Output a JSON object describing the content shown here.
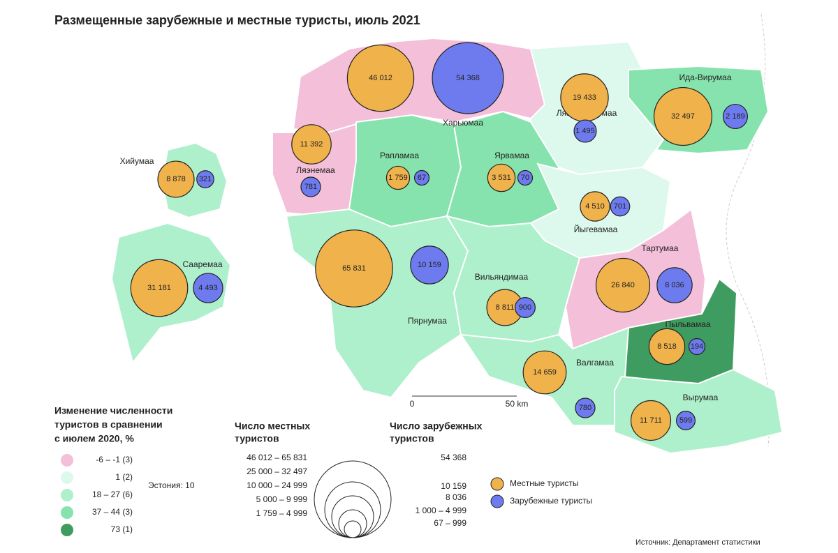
{
  "title": "Размещенные зарубежные и местные туристы, июль 2021",
  "regions": [
    {
      "name": "Харьюмаа",
      "class": 0,
      "local": {
        "value": 46012,
        "label": "46 012"
      },
      "foreign": {
        "value": 54368,
        "label": "54 368"
      }
    },
    {
      "name": "Ляэне-Вирумаа",
      "class": 1,
      "local": {
        "value": 19433,
        "label": "19 433"
      },
      "foreign": {
        "value": 1495,
        "label": "1 495"
      }
    },
    {
      "name": "Ида-Вирумаа",
      "class": 3,
      "local": {
        "value": 32497,
        "label": "32 497"
      },
      "foreign": {
        "value": 2189,
        "label": "2 189"
      }
    },
    {
      "name": "Ляэнемаа",
      "class": 0,
      "local": {
        "value": 11392,
        "label": "11 392"
      },
      "foreign": {
        "value": 781,
        "label": "781"
      }
    },
    {
      "name": "Хийумаа",
      "class": 2,
      "local": {
        "value": 8878,
        "label": "8 878"
      },
      "foreign": {
        "value": 321,
        "label": "321"
      }
    },
    {
      "name": "Рапламаа",
      "class": 3,
      "local": {
        "value": 1759,
        "label": "1 759"
      },
      "foreign": {
        "value": 67,
        "label": "67"
      }
    },
    {
      "name": "Ярвамаа",
      "class": 3,
      "local": {
        "value": 3531,
        "label": "3 531"
      },
      "foreign": {
        "value": 70,
        "label": "70"
      }
    },
    {
      "name": "Йыгевамаа",
      "class": 1,
      "local": {
        "value": 4510,
        "label": "4 510"
      },
      "foreign": {
        "value": 701,
        "label": "701"
      }
    },
    {
      "name": "Сааремаа",
      "class": 2,
      "local": {
        "value": 31181,
        "label": "31 181"
      },
      "foreign": {
        "value": 4493,
        "label": "4 493"
      }
    },
    {
      "name": "Пярнумаа",
      "class": 2,
      "local": {
        "value": 65831,
        "label": "65 831"
      },
      "foreign": {
        "value": 10159,
        "label": "10 159"
      }
    },
    {
      "name": "Вильяндимаа",
      "class": 2,
      "local": {
        "value": 8811,
        "label": "8 811"
      },
      "foreign": {
        "value": 900,
        "label": "900"
      }
    },
    {
      "name": "Тартумаа",
      "class": 0,
      "local": {
        "value": 26840,
        "label": "26 840"
      },
      "foreign": {
        "value": 8036,
        "label": "8 036"
      }
    },
    {
      "name": "Пыльвамаа",
      "class": 4,
      "local": {
        "value": 8518,
        "label": "8 518"
      },
      "foreign": {
        "value": 194,
        "label": "194"
      }
    },
    {
      "name": "Валгамаа",
      "class": 2,
      "local": {
        "value": 14659,
        "label": "14 659"
      },
      "foreign": {
        "value": 780,
        "label": "780"
      }
    },
    {
      "name": "Вырумаа",
      "class": 2,
      "local": {
        "value": 11711,
        "label": "11 711"
      },
      "foreign": {
        "value": 599,
        "label": "599"
      }
    }
  ],
  "change_legend": {
    "title": [
      "Изменение численности",
      "туристов в сравнении",
      "с июлем 2020, %"
    ],
    "items": [
      {
        "label": "-6 –  -1 (3)",
        "color": "#f4bfd8"
      },
      {
        "label": "1 (2)",
        "color": "#ddf8ec"
      },
      {
        "label": "18 – 27 (6)",
        "color": "#aeefcc"
      },
      {
        "label": "37 – 44 (3)",
        "color": "#86e3ad"
      },
      {
        "label": "73 (1)",
        "color": "#3f9c60"
      }
    ],
    "estonia": "Эстония: 10"
  },
  "local_legend": {
    "title": [
      "Число местных",
      "туристов"
    ],
    "ranges": [
      "46 012 – 65 831",
      "25 000 – 32 497",
      "10 000 – 24 999",
      "5 000 –   9 999",
      "1 759 –   4 999"
    ]
  },
  "foreign_legend": {
    "title": [
      "Число зарубежных",
      "туристов"
    ],
    "ranges": [
      "54 368",
      "10 159",
      "8 036",
      "1 000 –   4 999",
      "67 –     999"
    ]
  },
  "series_legend": [
    {
      "label": "Местные туристы",
      "color": "#f0b24b"
    },
    {
      "label": "Зарубежные туристы",
      "color": "#6e7bef"
    }
  ],
  "scale": [
    "0",
    "50 km"
  ],
  "source": "Источник: Департамент статистики"
}
